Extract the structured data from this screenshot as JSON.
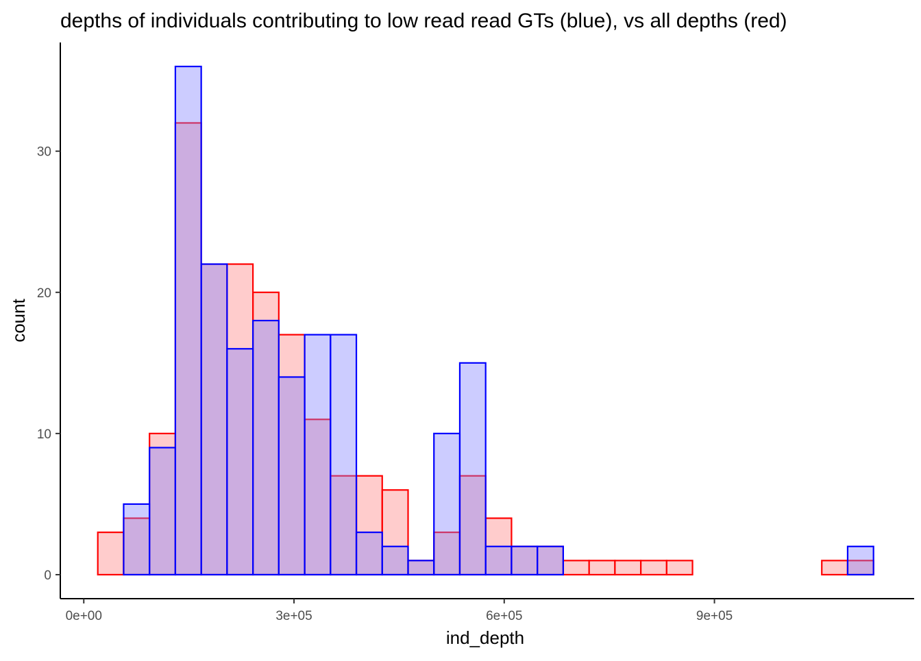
{
  "chart_data": {
    "type": "bar",
    "title": "depths of individuals contributing to low read read GTs (blue), vs all depths (red)",
    "xlabel": "ind_depth",
    "ylabel": "count",
    "xlim": [
      -33500,
      1185000
    ],
    "ylim": [
      -1.7,
      37.7
    ],
    "x_ticks": [
      0,
      300000,
      600000,
      900000
    ],
    "x_tick_labels": [
      "0e+00",
      "3e+05",
      "6e+05",
      "9e+05"
    ],
    "y_ticks": [
      0,
      10,
      20,
      30
    ],
    "y_tick_labels": [
      "0",
      "10",
      "20",
      "30"
    ],
    "grid": false,
    "legend": "none",
    "bin_width": 36900,
    "bin_starts": [
      20000,
      56900,
      93800,
      130700,
      167600,
      204500,
      241400,
      278300,
      315200,
      352100,
      389000,
      425900,
      462800,
      499700,
      536600,
      573500,
      610400,
      647300,
      684200,
      721100,
      758000,
      794900,
      831800,
      868700,
      905600,
      942500,
      979400,
      1016300,
      1053200,
      1090100
    ],
    "series": [
      {
        "color": "#ff0000",
        "fill": "#ff8080",
        "values": [
          3,
          4,
          10,
          32,
          22,
          22,
          20,
          17,
          11,
          7,
          7,
          6,
          1,
          3,
          7,
          4,
          2,
          2,
          1,
          1,
          1,
          1,
          1,
          0,
          0,
          0,
          0,
          0,
          1,
          1
        ]
      },
      {
        "color": "#0000ff",
        "fill": "#8080ff",
        "values": [
          0,
          5,
          9,
          36,
          22,
          16,
          18,
          14,
          17,
          17,
          3,
          2,
          1,
          10,
          15,
          2,
          2,
          2,
          0,
          0,
          0,
          0,
          0,
          0,
          0,
          0,
          0,
          0,
          0,
          2
        ]
      }
    ]
  }
}
